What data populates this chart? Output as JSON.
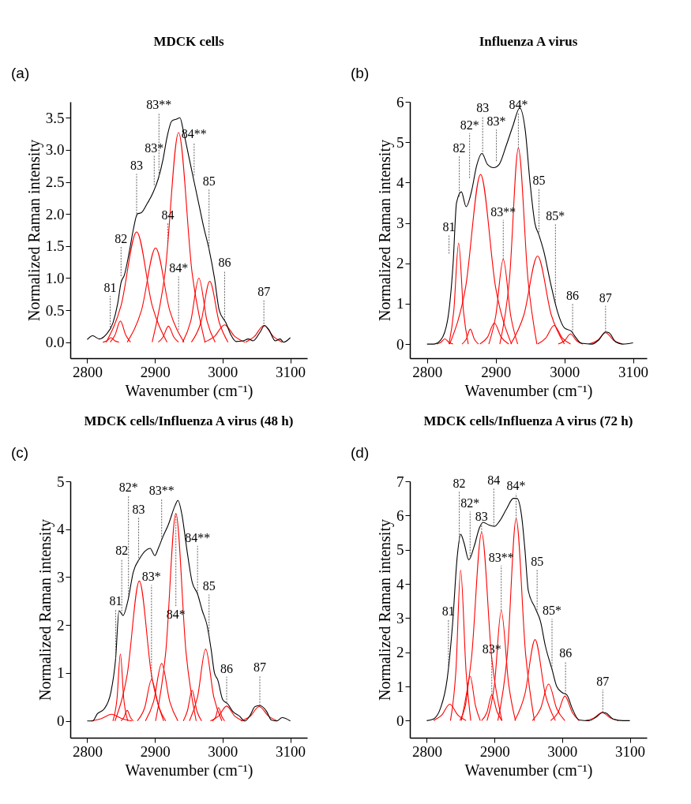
{
  "chart_data": [
    {
      "type": "line",
      "title": "MDCK cells",
      "xlabel": "Wavenumber (cm⁻¹)",
      "ylabel": "Normalized Raman intensity",
      "xlim": [
        2775,
        3125
      ],
      "xticks": [
        2800,
        2900,
        3000,
        3100
      ],
      "ylim": [
        -0.25,
        3.75
      ],
      "yticks": [
        {
          "value": 0,
          "label": "0.0"
        },
        0.5,
        {
          "value": 1,
          "label": "1.0"
        },
        1.5,
        {
          "value": 2,
          "label": "2.0"
        },
        2.5,
        {
          "value": 3,
          "label": "3.0"
        },
        3.5
      ],
      "series": [
        {
          "color": "#ff0000",
          "x": [
            2823,
            2829,
            2835,
            2841,
            2847
          ],
          "values": [
            0,
            0.02,
            0.07,
            0.02,
            0
          ]
        },
        {
          "color": "#ff0000",
          "x": [
            2834,
            2841,
            2849,
            2857,
            2864
          ],
          "values": [
            0,
            0.11,
            0.33,
            0.11,
            0
          ]
        },
        {
          "color": "#ff0000",
          "x": [
            2828,
            2850,
            2873,
            2896,
            2918
          ],
          "values": [
            0,
            0.57,
            1.72,
            0.57,
            0
          ]
        },
        {
          "color": "#ff0000",
          "x": [
            2859,
            2880,
            2901,
            2922,
            2943
          ],
          "values": [
            0,
            0.49,
            1.47,
            0.49,
            0
          ]
        },
        {
          "color": "#ff0000",
          "x": [
            2905,
            2912,
            2920,
            2928,
            2935
          ],
          "values": [
            0,
            0.08,
            0.25,
            0.08,
            0
          ]
        },
        {
          "color": "#ff0000",
          "x": [
            2896,
            2915,
            2935,
            2955,
            2974
          ],
          "values": [
            0,
            1.08,
            3.27,
            1.08,
            0
          ]
        },
        {
          "color": "#ff0000",
          "x": [
            2941,
            2953,
            2965,
            2977,
            2989
          ],
          "values": [
            0,
            0.33,
            1.0,
            0.33,
            0
          ]
        },
        {
          "color": "#ff0000",
          "x": [
            2954,
            2968,
            2981,
            2995,
            3008
          ],
          "values": [
            0,
            0.31,
            0.95,
            0.31,
            0
          ]
        },
        {
          "color": "#ff0000",
          "x": [
            2973,
            2988,
            3003,
            3018,
            3033
          ],
          "values": [
            0,
            0.09,
            0.27,
            0.09,
            0
          ]
        },
        {
          "color": "#ff0000",
          "x": [
            3034,
            3047,
            3061,
            3075,
            3088
          ],
          "values": [
            0,
            0.09,
            0.26,
            0.09,
            0
          ]
        },
        {
          "color": "#000000",
          "x": [
            2800,
            2808,
            2818,
            2828,
            2838,
            2845,
            2850,
            2855,
            2862,
            2868,
            2874,
            2880,
            2888,
            2898,
            2905,
            2912,
            2918,
            2925,
            2932,
            2937,
            2942,
            2950,
            2958,
            2966,
            2972,
            2980,
            2988,
            2995,
            3005,
            3012,
            3020,
            3030,
            3038,
            3045,
            3055,
            3062,
            3068,
            3078,
            3085,
            3090,
            3100
          ],
          "values": [
            0.04,
            0.1,
            0.05,
            0.12,
            0.3,
            0.6,
            0.93,
            1.05,
            1.4,
            1.75,
            2.0,
            2.02,
            2.15,
            2.35,
            2.55,
            2.85,
            3.2,
            3.45,
            3.48,
            3.5,
            3.3,
            2.9,
            2.5,
            2.1,
            1.8,
            1.45,
            1.0,
            0.5,
            0.3,
            0.12,
            0.01,
            0.02,
            0.05,
            0.02,
            0.15,
            0.26,
            0.2,
            0.02,
            0.05,
            0.0,
            0.07
          ]
        }
      ],
      "annotations": [
        "(a)",
        {
          "text": "81",
          "x": 2834,
          "y": 0.23
        },
        {
          "text": "82",
          "x": 2850,
          "y": 1.03
        },
        {
          "text": "83",
          "x": 2873,
          "y": 1.96
        },
        {
          "text": "83*",
          "x": 2899,
          "y": 2.45
        },
        {
          "text": "83**",
          "x": 2906,
          "y": 2.59
        },
        {
          "text": "84",
          "x": 2919,
          "y": 1.57
        },
        {
          "text": "84**",
          "x": 2958,
          "y": 2.6
        },
        {
          "text": "84*",
          "x": 2935,
          "y": 0.19
        },
        {
          "text": "85",
          "x": 2980,
          "y": 1.45
        },
        {
          "text": "86",
          "x": 3003,
          "y": 0.34
        },
        {
          "text": "87",
          "x": 3061,
          "y": 0.24
        }
      ]
    },
    {
      "type": "line",
      "title": "Influenza A virus",
      "xlabel": "Wavenumber (cm⁻¹)",
      "ylabel": "Normalized Raman intensity",
      "xlim": [
        2775,
        3120
      ],
      "xticks": [
        2800,
        2900,
        3000,
        3100
      ],
      "ylim": [
        -0.35,
        6
      ],
      "yticks": [
        0,
        1,
        2,
        3,
        4,
        5,
        6
      ],
      "series": [
        {
          "color": "#ff0000",
          "x": [
            2814,
            2820,
            2826,
            2832,
            2838
          ],
          "values": [
            0,
            0.04,
            0.13,
            0.04,
            0
          ]
        },
        {
          "color": "#ff0000",
          "x": [
            2832,
            2839,
            2846,
            2853,
            2860
          ],
          "values": [
            0,
            0.83,
            2.5,
            0.83,
            0
          ]
        },
        {
          "color": "#ff0000",
          "x": [
            2851,
            2857,
            2863,
            2869,
            2875
          ],
          "values": [
            0,
            0.12,
            0.37,
            0.12,
            0
          ]
        },
        {
          "color": "#ff0000",
          "x": [
            2833,
            2856,
            2878,
            2900,
            2923
          ],
          "values": [
            0,
            1.39,
            4.2,
            1.39,
            0
          ]
        },
        {
          "color": "#ff0000",
          "x": [
            2877,
            2888,
            2898,
            2908,
            2919
          ],
          "values": [
            0,
            0.17,
            0.52,
            0.17,
            0
          ]
        },
        {
          "color": "#ff0000",
          "x": [
            2890,
            2900,
            2911,
            2922,
            2932
          ],
          "values": [
            0,
            0.69,
            2.1,
            0.69,
            0
          ]
        },
        {
          "color": "#ff0000",
          "x": [
            2906,
            2920,
            2933,
            2947,
            2960
          ],
          "values": [
            0,
            1.6,
            4.85,
            1.6,
            0
          ]
        },
        {
          "color": "#ff0000",
          "x": [
            2922,
            2941,
            2961,
            2981,
            3000
          ],
          "values": [
            0,
            0.72,
            2.18,
            0.72,
            0
          ]
        },
        {
          "color": "#ff0000",
          "x": [
            2961,
            2973,
            2985,
            2997,
            3009
          ],
          "values": [
            0,
            0.15,
            0.46,
            0.15,
            0
          ]
        },
        {
          "color": "#ff0000",
          "x": [
            2991,
            3000,
            3009,
            3018,
            3027
          ],
          "values": [
            0,
            0.08,
            0.25,
            0.08,
            0
          ]
        },
        {
          "color": "#ff0000",
          "x": [
            3036,
            3048,
            3060,
            3072,
            3084
          ],
          "values": [
            0,
            0.09,
            0.28,
            0.09,
            0
          ]
        },
        {
          "color": "#000000",
          "x": [
            2800,
            2810,
            2820,
            2830,
            2838,
            2843,
            2850,
            2857,
            2865,
            2872,
            2880,
            2888,
            2897,
            2905,
            2915,
            2925,
            2935,
            2943,
            2950,
            2957,
            2963,
            2970,
            2980,
            2990,
            3000,
            3010,
            3015,
            3025,
            3040,
            3050,
            3060,
            3065,
            3075,
            3085,
            3100
          ],
          "values": [
            0,
            0,
            0.1,
            0.6,
            2.0,
            3.5,
            3.77,
            3.4,
            3.8,
            4.4,
            4.72,
            4.45,
            4.37,
            4.45,
            4.9,
            5.4,
            5.85,
            5.3,
            4.0,
            3.0,
            2.7,
            2.3,
            1.5,
            0.8,
            0.4,
            0.32,
            0.2,
            0.02,
            0,
            0.1,
            0.3,
            0.28,
            0.05,
            0,
            0.03
          ]
        }
      ],
      "annotations": [
        "(b)",
        {
          "text": "81",
          "x": 2832,
          "y": 2.24
        },
        {
          "text": "82",
          "x": 2847,
          "y": 3.65
        },
        {
          "text": "82*",
          "x": 2862,
          "y": 4.11
        },
        {
          "text": "83",
          "x": 2881,
          "y": 4.69
        },
        {
          "text": "83*",
          "x": 2901,
          "y": 4.53
        },
        {
          "text": "84*",
          "x": 2933,
          "y": 4.85
        },
        {
          "text": "83**",
          "x": 2911,
          "y": 2.1
        },
        {
          "text": "85",
          "x": 2963,
          "y": 2.7
        },
        {
          "text": "85*",
          "x": 2987,
          "y": 1.01
        },
        {
          "text": "86",
          "x": 3012,
          "y": 0.27
        },
        {
          "text": "87",
          "x": 3060,
          "y": 0.3
        }
      ]
    },
    {
      "type": "line",
      "title": "MDCK cells/Influenza A virus (48 h)",
      "xlabel": "Wavenumber (cm⁻¹)",
      "ylabel": "Normalized Raman intensity",
      "xlim": [
        2775,
        3125
      ],
      "xticks": [
        2800,
        2900,
        3000,
        3100
      ],
      "ylim": [
        -0.35,
        5
      ],
      "yticks": [
        0,
        1,
        2,
        3,
        4,
        5
      ],
      "series": [
        {
          "color": "#ff0000",
          "x": [
            2806,
            2821,
            2836,
            2851,
            2866
          ],
          "values": [
            0,
            0.05,
            0.14,
            0.05,
            0
          ]
        },
        {
          "color": "#ff0000",
          "x": [
            2838,
            2844,
            2849,
            2854,
            2860
          ],
          "values": [
            0,
            0.46,
            1.4,
            0.46,
            0
          ]
        },
        {
          "color": "#ff0000",
          "x": [
            2850,
            2854,
            2859,
            2864,
            2868
          ],
          "values": [
            0,
            0.07,
            0.22,
            0.07,
            0
          ]
        },
        {
          "color": "#ff0000",
          "x": [
            2841,
            2859,
            2877,
            2895,
            2913
          ],
          "values": [
            0,
            0.96,
            2.92,
            0.96,
            0
          ]
        },
        {
          "color": "#ff0000",
          "x": [
            2874,
            2885,
            2895,
            2906,
            2916
          ],
          "values": [
            0,
            0.28,
            0.86,
            0.28,
            0
          ]
        },
        {
          "color": "#ff0000",
          "x": [
            2886,
            2898,
            2910,
            2922,
            2934
          ],
          "values": [
            0,
            0.4,
            1.2,
            0.4,
            0
          ]
        },
        {
          "color": "#ff0000",
          "x": [
            2901,
            2916,
            2931,
            2946,
            2961
          ],
          "values": [
            0,
            1.43,
            4.33,
            1.43,
            0
          ]
        },
        {
          "color": "#ff0000",
          "x": [
            2942,
            2948,
            2955,
            2962,
            2969
          ],
          "values": [
            0,
            0.21,
            0.64,
            0.21,
            0
          ]
        },
        {
          "color": "#ff0000",
          "x": [
            2951,
            2963,
            2975,
            2987,
            2999
          ],
          "values": [
            0,
            0.5,
            1.5,
            0.5,
            0
          ]
        },
        {
          "color": "#ff0000",
          "x": [
            2985,
            2990,
            2994,
            2999,
            3003
          ],
          "values": [
            0,
            0.09,
            0.28,
            0.09,
            0
          ]
        },
        {
          "color": "#ff0000",
          "x": [
            2982,
            2994,
            3006,
            3018,
            3030
          ],
          "values": [
            0,
            0.1,
            0.31,
            0.1,
            0
          ]
        },
        {
          "color": "#ff0000",
          "x": [
            3027,
            3041,
            3054,
            3068,
            3081
          ],
          "values": [
            0,
            0.1,
            0.3,
            0.1,
            0
          ]
        },
        {
          "color": "#000000",
          "x": [
            2800,
            2808,
            2815,
            2825,
            2835,
            2842,
            2847,
            2853,
            2860,
            2868,
            2878,
            2886,
            2893,
            2900,
            2905,
            2912,
            2920,
            2930,
            2934,
            2940,
            2947,
            2955,
            2963,
            2970,
            2977,
            2983,
            2988,
            2993,
            3000,
            3008,
            3015,
            3025,
            3033,
            3040,
            3048,
            3055,
            3065,
            3072,
            3080,
            3088,
            3100
          ],
          "values": [
            0,
            0,
            0.15,
            0.25,
            0.6,
            1.3,
            2.3,
            2.2,
            2.5,
            3.1,
            3.4,
            3.55,
            3.6,
            3.45,
            3.6,
            3.85,
            4.1,
            4.5,
            4.6,
            4.3,
            3.6,
            2.9,
            2.65,
            2.3,
            2.0,
            1.5,
            1.0,
            0.85,
            0.45,
            0.35,
            0.2,
            0.1,
            0,
            0.1,
            0.3,
            0.32,
            0.2,
            0.02,
            0,
            0.07,
            0
          ]
        }
      ],
      "annotations": [
        "(c)",
        {
          "text": "81",
          "x": 2842,
          "y": 1.3
        },
        {
          "text": "82",
          "x": 2851,
          "y": 2.23
        },
        {
          "text": "82*",
          "x": 2861,
          "y": 2.58
        },
        {
          "text": "83",
          "x": 2876,
          "y": 3.34
        },
        {
          "text": "83*",
          "x": 2895,
          "y": 0.86
        },
        {
          "text": "83**",
          "x": 2910,
          "y": 3.78
        },
        {
          "text": "84*",
          "x": 2931,
          "y": 4.33
        },
        {
          "text": "84**",
          "x": 2963,
          "y": 2.65
        },
        {
          "text": "85",
          "x": 2980,
          "y": 1.75
        },
        {
          "text": "86",
          "x": 3006,
          "y": 0.38
        },
        {
          "text": "87",
          "x": 3055,
          "y": 0.32
        }
      ]
    },
    {
      "type": "line",
      "title": "MDCK cells/Influenza A virus (72 h)",
      "xlabel": "Wavenumber (cm⁻¹)",
      "ylabel": "Normalized Raman intensity",
      "xlim": [
        2775,
        3125
      ],
      "xticks": [
        2800,
        2900,
        3000,
        3100
      ],
      "ylim": [
        -0.5,
        7
      ],
      "yticks": [
        0,
        1,
        2,
        3,
        4,
        5,
        6,
        7
      ],
      "series": [
        {
          "color": "#ff0000",
          "x": [
            2810,
            2822,
            2834,
            2846,
            2858
          ],
          "values": [
            0,
            0.16,
            0.48,
            0.16,
            0
          ]
        },
        {
          "color": "#ff0000",
          "x": [
            2835,
            2843,
            2850,
            2858,
            2865
          ],
          "values": [
            0,
            1.45,
            4.4,
            1.45,
            0
          ]
        },
        {
          "color": "#ff0000",
          "x": [
            2849,
            2857,
            2864,
            2872,
            2879
          ],
          "values": [
            0,
            0.43,
            1.3,
            0.43,
            0
          ]
        },
        {
          "color": "#ff0000",
          "x": [
            2851,
            2866,
            2881,
            2896,
            2911
          ],
          "values": [
            0,
            1.82,
            5.5,
            1.82,
            0
          ]
        },
        {
          "color": "#ff0000",
          "x": [
            2881,
            2889,
            2896,
            2904,
            2911
          ],
          "values": [
            0,
            0.25,
            0.75,
            0.25,
            0
          ]
        },
        {
          "color": "#ff0000",
          "x": [
            2889,
            2900,
            2910,
            2921,
            2931
          ],
          "values": [
            0,
            1.06,
            3.22,
            1.06,
            0
          ]
        },
        {
          "color": "#ff0000",
          "x": [
            2905,
            2919,
            2932,
            2946,
            2959
          ],
          "values": [
            0,
            1.95,
            5.9,
            1.95,
            0
          ]
        },
        {
          "color": "#ff0000",
          "x": [
            2930,
            2945,
            2960,
            2975,
            2990
          ],
          "values": [
            0,
            0.78,
            2.37,
            0.78,
            0
          ]
        },
        {
          "color": "#ff0000",
          "x": [
            2956,
            2968,
            2980,
            2992,
            3004
          ],
          "values": [
            0,
            0.35,
            1.07,
            0.35,
            0
          ]
        },
        {
          "color": "#ff0000",
          "x": [
            2983,
            2994,
            3004,
            3015,
            3025
          ],
          "values": [
            0,
            0.24,
            0.72,
            0.24,
            0
          ]
        },
        {
          "color": "#ff0000",
          "x": [
            3035,
            3047,
            3059,
            3071,
            3083
          ],
          "values": [
            0,
            0.08,
            0.24,
            0.08,
            0
          ]
        },
        {
          "color": "#000000",
          "x": [
            2800,
            2810,
            2820,
            2830,
            2838,
            2845,
            2850,
            2855,
            2862,
            2870,
            2878,
            2883,
            2892,
            2900,
            2908,
            2918,
            2928,
            2933,
            2940,
            2945,
            2950,
            2960,
            2968,
            2975,
            2985,
            2992,
            3000,
            3007,
            3015,
            3025,
            3040,
            3050,
            3060,
            3065,
            3075,
            3090,
            3100
          ],
          "values": [
            0,
            0.05,
            0.35,
            1.2,
            2.8,
            4.8,
            5.45,
            5.2,
            4.7,
            5.1,
            5.65,
            5.8,
            5.72,
            5.68,
            5.85,
            6.2,
            6.5,
            6.5,
            6.0,
            5.0,
            3.8,
            3.3,
            2.9,
            2.2,
            1.5,
            1.0,
            0.82,
            0.75,
            0.35,
            0.02,
            0,
            0.1,
            0.24,
            0.22,
            0.05,
            0,
            0
          ]
        }
      ],
      "annotations": [
        "(d)",
        {
          "text": "81",
          "x": 2832,
          "y": 1.6
        },
        {
          "text": "82",
          "x": 2848,
          "y": 5.19
        },
        {
          "text": "82*",
          "x": 2864,
          "y": 4.8
        },
        {
          "text": "83",
          "x": 2881,
          "y": 5.5
        },
        {
          "text": "84",
          "x": 2899,
          "y": 5.69
        },
        {
          "text": "84*",
          "x": 2932,
          "y": 5.9
        },
        {
          "text": "83**",
          "x": 2910,
          "y": 3.22
        },
        {
          "text": "83*",
          "x": 2896,
          "y": 0.75
        },
        {
          "text": "85",
          "x": 2963,
          "y": 3.15
        },
        {
          "text": "85*",
          "x": 2985,
          "y": 1.5
        },
        {
          "text": "86",
          "x": 3005,
          "y": 0.77
        },
        {
          "text": "87",
          "x": 3060,
          "y": 0.24
        }
      ]
    }
  ]
}
